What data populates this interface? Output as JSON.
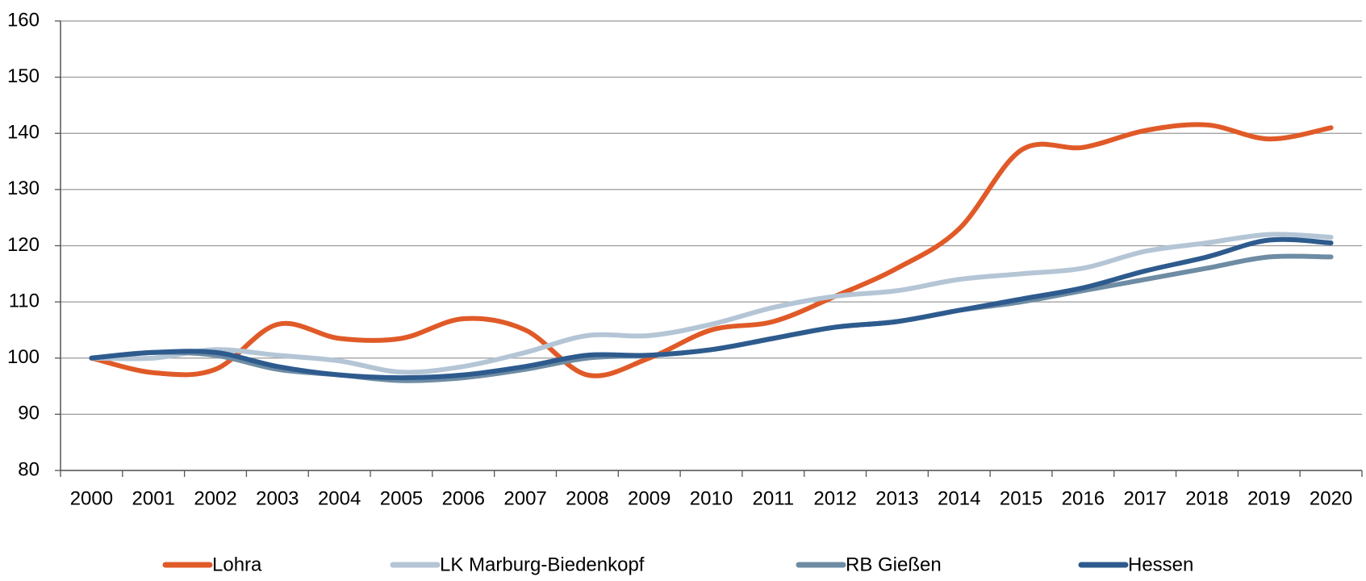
{
  "chart_data": {
    "type": "line",
    "categories": [
      "2000",
      "2001",
      "2002",
      "2003",
      "2004",
      "2005",
      "2006",
      "2007",
      "2008",
      "2009",
      "2010",
      "2011",
      "2012",
      "2013",
      "2014",
      "2015",
      "2016",
      "2017",
      "2018",
      "2019",
      "2020"
    ],
    "series": [
      {
        "name": "Lohra",
        "color": "#e05a28",
        "values": [
          100,
          97.4,
          98,
          106,
          103.5,
          103.5,
          107,
          105,
          97,
          100,
          105,
          106.5,
          111,
          116,
          123,
          137,
          137.5,
          140.5,
          141.5,
          139,
          141
        ]
      },
      {
        "name": "LK Marburg-Biedenkopf",
        "color": "#b4c5d5",
        "values": [
          100,
          100,
          101.5,
          100.5,
          99.5,
          97.5,
          98.5,
          101,
          104,
          104,
          106,
          109,
          111,
          112,
          114,
          115,
          116,
          119,
          120.5,
          122,
          121.5
        ]
      },
      {
        "name": "RB Gießen",
        "color": "#6e8ca3",
        "values": [
          100,
          101,
          100.5,
          98,
          97,
          96,
          96.5,
          98,
          100,
          100.5,
          101.5,
          103.5,
          105.5,
          106.5,
          108.5,
          110,
          112,
          114,
          116,
          118,
          118
        ]
      },
      {
        "name": "Hessen",
        "color": "#2e5b8e",
        "values": [
          100,
          101,
          101,
          98.5,
          97,
          96.5,
          97,
          98.5,
          100.5,
          100.5,
          101.5,
          103.5,
          105.5,
          106.5,
          108.5,
          110.5,
          112.5,
          115.5,
          118,
          121,
          120.5
        ]
      }
    ],
    "ylim": [
      80,
      160
    ],
    "yticks": [
      80,
      90,
      100,
      110,
      120,
      130,
      140,
      150,
      160
    ],
    "grid": true,
    "legend": "bottom"
  }
}
